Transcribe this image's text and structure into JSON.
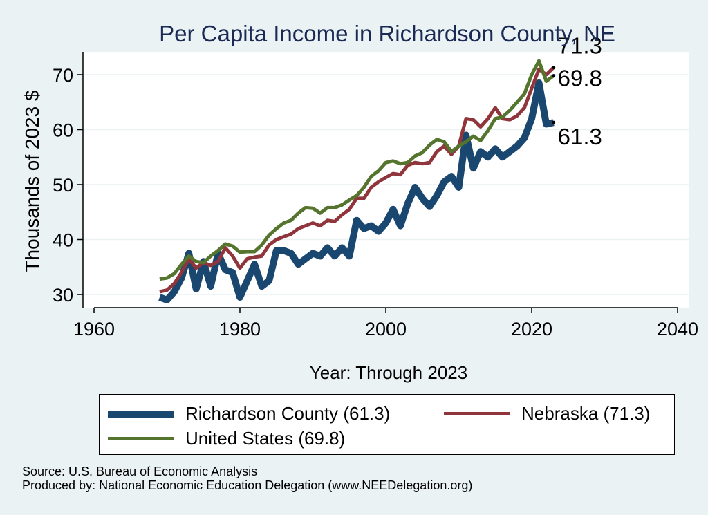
{
  "chart_data": {
    "type": "line",
    "title": "Per Capita Income in Richardson County, NE",
    "xlabel": "Year: Through 2023",
    "ylabel": "Thousands of 2023 $",
    "xlim": [
      1960,
      2040
    ],
    "ylim": [
      28,
      75
    ],
    "xticks": [
      "1960",
      "1980",
      "2000",
      "2020",
      "2040"
    ],
    "yticks": [
      "30",
      "40",
      "50",
      "60",
      "70"
    ],
    "x": [
      1969,
      1970,
      1971,
      1972,
      1973,
      1974,
      1975,
      1976,
      1977,
      1978,
      1979,
      1980,
      1981,
      1982,
      1983,
      1984,
      1985,
      1986,
      1987,
      1988,
      1989,
      1990,
      1991,
      1992,
      1993,
      1994,
      1995,
      1996,
      1997,
      1998,
      1999,
      2000,
      2001,
      2002,
      2003,
      2004,
      2005,
      2006,
      2007,
      2008,
      2009,
      2010,
      2011,
      2012,
      2013,
      2014,
      2015,
      2016,
      2017,
      2018,
      2019,
      2020,
      2021,
      2022,
      2023
    ],
    "series": [
      {
        "name": "Richardson County",
        "color": "#1a476f",
        "values": [
          29.5,
          29.0,
          30.5,
          33.0,
          37.5,
          31.0,
          36.0,
          31.5,
          37.5,
          34.5,
          34.0,
          29.5,
          32.5,
          35.5,
          31.5,
          32.5,
          38.0,
          38.0,
          37.5,
          35.5,
          36.5,
          37.5,
          37.0,
          38.5,
          37.0,
          38.5,
          37.0,
          43.5,
          42.0,
          42.5,
          41.5,
          43.0,
          45.5,
          42.5,
          46.5,
          49.5,
          47.5,
          46.0,
          48.0,
          50.5,
          51.5,
          49.5,
          59.0,
          53.0,
          56.0,
          55.0,
          56.5,
          55.0,
          56.0,
          57.0,
          58.5,
          62.0,
          68.5,
          61.0,
          61.3
        ]
      },
      {
        "name": "Nebraska",
        "color": "#90353b",
        "values": [
          30.5,
          30.8,
          32.0,
          34.0,
          36.5,
          34.8,
          35.8,
          35.3,
          36.0,
          38.5,
          37.0,
          34.8,
          36.5,
          36.8,
          37.0,
          39.0,
          40.0,
          40.5,
          41.0,
          42.0,
          42.5,
          43.0,
          42.5,
          43.5,
          43.3,
          44.5,
          45.5,
          47.5,
          47.5,
          49.5,
          50.5,
          51.3,
          52.0,
          51.8,
          53.5,
          54.0,
          53.8,
          54.0,
          56.0,
          57.0,
          55.5,
          57.0,
          62.0,
          61.8,
          60.5,
          62.0,
          64.0,
          62.0,
          61.8,
          62.5,
          64.0,
          67.5,
          71.0,
          70.0,
          71.3
        ]
      },
      {
        "name": "United States",
        "color": "#55752f",
        "values": [
          32.8,
          33.0,
          33.8,
          35.5,
          37.0,
          36.0,
          35.8,
          37.0,
          38.0,
          39.2,
          38.8,
          37.7,
          37.8,
          37.8,
          39.0,
          40.8,
          42.0,
          43.0,
          43.5,
          44.8,
          45.8,
          45.7,
          44.8,
          45.8,
          45.8,
          46.3,
          47.2,
          48.0,
          49.5,
          51.5,
          52.5,
          54.0,
          54.3,
          53.8,
          54.0,
          55.2,
          55.8,
          57.2,
          58.2,
          57.8,
          56.0,
          57.0,
          57.8,
          58.8,
          58.0,
          59.8,
          62.0,
          62.3,
          63.5,
          65.0,
          66.5,
          70.0,
          72.5,
          68.8,
          69.8
        ]
      }
    ],
    "end_labels": [
      "71.3",
      "69.8",
      "61.3"
    ]
  },
  "legend": {
    "items": [
      {
        "label": "Richardson County (61.3)"
      },
      {
        "label": "Nebraska (71.3)"
      },
      {
        "label": "United States (69.8)"
      }
    ]
  },
  "footer": {
    "source": "Source: U.S. Bureau of Economic Analysis",
    "produced_by": "Produced by: National Economic Education Delegation (www.NEEDelegation.org)"
  }
}
